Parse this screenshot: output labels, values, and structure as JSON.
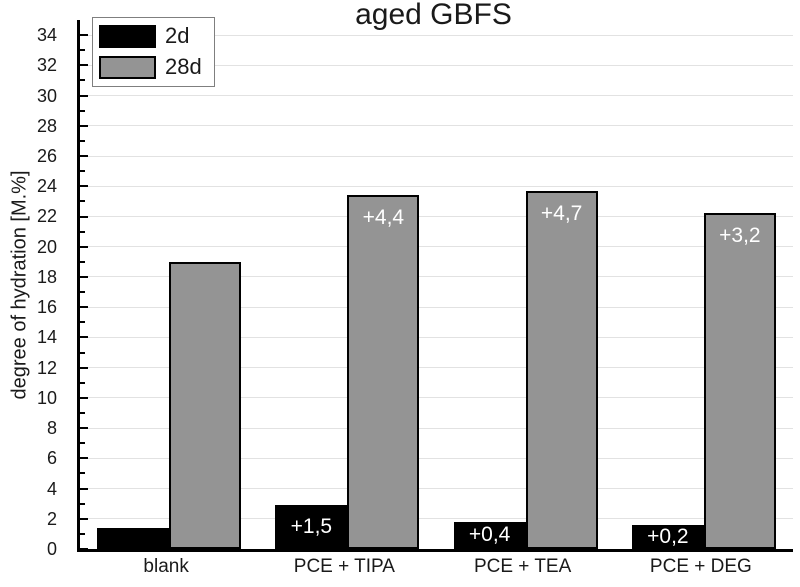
{
  "chart_data": {
    "type": "bar",
    "title": "aged GBFS",
    "xlabel": "",
    "ylabel": "degree of hydration [M.%]",
    "categories": [
      "blank",
      "PCE + TIPA",
      "PCE + TEA",
      "PCE + DEG"
    ],
    "series": [
      {
        "name": "2d",
        "color": "#000000",
        "values": [
          1.4,
          2.9,
          1.8,
          1.6
        ],
        "bar_labels": [
          "",
          "+1,5",
          "+0,4",
          "+0,2"
        ]
      },
      {
        "name": "28d",
        "color": "#949494",
        "values": [
          19.0,
          23.4,
          23.7,
          22.2
        ],
        "bar_labels": [
          "",
          "+4,4",
          "+4,7",
          "+3,2"
        ]
      }
    ],
    "ylim": [
      0,
      35
    ],
    "ytick_step": 2,
    "ytick_labels": [
      "0",
      "2",
      "4",
      "6",
      "8",
      "10",
      "12",
      "14",
      "16",
      "18",
      "20",
      "22",
      "24",
      "26",
      "28",
      "30",
      "32",
      "34"
    ],
    "minor_tick_step": 1,
    "grid": "horizontal-major",
    "legend_position": "top-left",
    "bar_label_color": "#ffffff"
  },
  "colors": {
    "background": "#ffffff",
    "gridline": "#e2e2e2",
    "axis": "#000000",
    "text": "#1a1a1a",
    "legend_border": "#7f7f7f"
  }
}
